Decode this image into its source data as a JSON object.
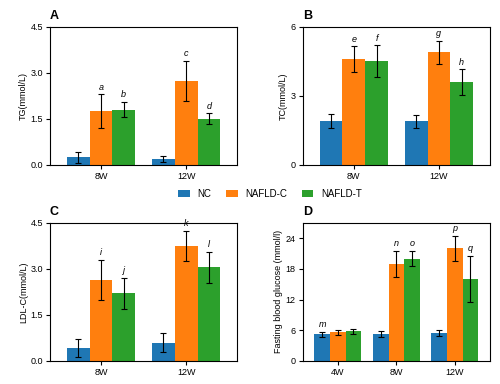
{
  "chart_data": [
    {
      "type": "bar",
      "title": "A",
      "ylabel": "TG(mmol/L)",
      "categories": [
        "8W",
        "12W"
      ],
      "ylim": [
        0,
        4.5
      ],
      "yticks": [
        {
          "value": 0,
          "label": "0.0"
        },
        1.5,
        {
          "value": 3,
          "label": "3.0"
        },
        4.5
      ],
      "series": [
        {
          "name": "NC",
          "values": [
            0.25,
            0.18
          ],
          "errors": [
            0.18,
            0.1
          ]
        },
        {
          "name": "NAFLD-C",
          "values": [
            1.75,
            2.75
          ],
          "errors": [
            0.55,
            0.65
          ],
          "annotations": [
            "a",
            "c"
          ]
        },
        {
          "name": "NAFLD-T",
          "values": [
            1.8,
            1.5
          ],
          "errors": [
            0.25,
            0.18
          ],
          "annotations": [
            "b",
            "d"
          ]
        }
      ]
    },
    {
      "type": "bar",
      "title": "B",
      "ylabel": "TC(mmol/L)",
      "categories": [
        "8W",
        "12W"
      ],
      "ylim": [
        0,
        6
      ],
      "yticks": [
        0,
        3,
        6
      ],
      "series": [
        {
          "name": "NC",
          "values": [
            1.9,
            1.9
          ],
          "errors": [
            0.3,
            0.28
          ]
        },
        {
          "name": "NAFLD-C",
          "values": [
            4.6,
            4.9
          ],
          "errors": [
            0.55,
            0.5
          ],
          "annotations": [
            "e",
            "g"
          ]
        },
        {
          "name": "NAFLD-T",
          "values": [
            4.5,
            3.6
          ],
          "errors": [
            0.7,
            0.55
          ],
          "annotations": [
            "f",
            "h"
          ]
        }
      ]
    },
    {
      "type": "bar",
      "title": "C",
      "ylabel": "LDL-C(mmol/L)",
      "categories": [
        "8W",
        "12W"
      ],
      "ylim": [
        0,
        4.5
      ],
      "yticks": [
        {
          "value": 0,
          "label": "0.0"
        },
        1.5,
        {
          "value": 3,
          "label": "3.0"
        },
        4.5
      ],
      "series": [
        {
          "name": "NC",
          "values": [
            0.42,
            0.6
          ],
          "errors": [
            0.28,
            0.3
          ]
        },
        {
          "name": "NAFLD-C",
          "values": [
            2.65,
            3.75
          ],
          "errors": [
            0.65,
            0.5
          ],
          "annotations": [
            "i",
            "k"
          ]
        },
        {
          "name": "NAFLD-T",
          "values": [
            2.2,
            3.05
          ],
          "errors": [
            0.5,
            0.5
          ],
          "annotations": [
            "j",
            "l"
          ]
        }
      ]
    },
    {
      "type": "bar",
      "title": "D",
      "ylabel": "Fasting blood glucose (mmol/l)",
      "categories": [
        "4W",
        "8W",
        "12W"
      ],
      "ylim": [
        0,
        27
      ],
      "yticks": [
        0,
        6,
        12,
        18,
        24
      ],
      "series": [
        {
          "name": "NC",
          "values": [
            5.2,
            5.2,
            5.5
          ],
          "errors": [
            0.5,
            0.6,
            0.6
          ],
          "annotations": [
            "m",
            null,
            null
          ]
        },
        {
          "name": "NAFLD-C",
          "values": [
            5.6,
            19.0,
            22.0
          ],
          "errors": [
            0.5,
            2.5,
            2.5
          ],
          "annotations": [
            null,
            "n",
            "p"
          ]
        },
        {
          "name": "NAFLD-T",
          "values": [
            5.8,
            20.0,
            16.0
          ],
          "errors": [
            0.5,
            1.5,
            4.5
          ],
          "annotations": [
            null,
            "o",
            "q"
          ]
        }
      ]
    }
  ]
}
